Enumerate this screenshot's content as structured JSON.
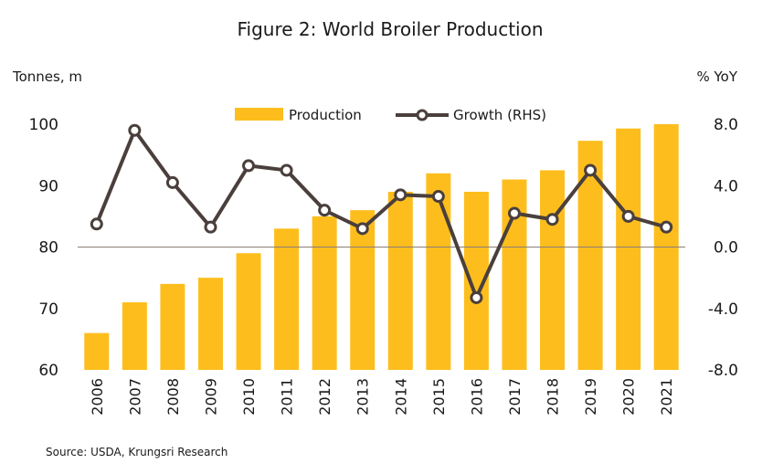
{
  "chart_data": {
    "type": "bar",
    "title": "Figure 2: World Broiler Production",
    "source": "Source: USDA, Krungsri Research",
    "y_left_label": "Tonnes, m",
    "y_right_label": "% YoY",
    "categories": [
      "2006",
      "2007",
      "2008",
      "2009",
      "2010",
      "2011",
      "2012",
      "2013",
      "2014",
      "2015",
      "2016",
      "2017",
      "2018",
      "2019",
      "2020",
      "2021"
    ],
    "y_left": {
      "min": 60,
      "max": 100,
      "ticks": [
        "60",
        "70",
        "80",
        "90",
        "100"
      ]
    },
    "y_right": {
      "min": -8,
      "max": 8,
      "ticks": [
        "-8.0",
        "-4.0",
        "0.0",
        "4.0",
        "8.0"
      ]
    },
    "legend": {
      "placement": "top-center"
    },
    "series": [
      {
        "name": "Production",
        "type": "bar",
        "axis": "left",
        "color": "#FDBE1D",
        "values": [
          66,
          71,
          74,
          75,
          79,
          83,
          85,
          86,
          89,
          92,
          89,
          91,
          92.5,
          97.3,
          99.3,
          100
        ]
      },
      {
        "name": "Growth (RHS)",
        "type": "line",
        "axis": "right",
        "color": "#4A3F3C",
        "values": [
          1.5,
          7.6,
          4.2,
          1.3,
          5.3,
          5.0,
          2.4,
          1.2,
          3.4,
          3.3,
          -3.3,
          2.2,
          1.8,
          5.0,
          2.0,
          1.3
        ]
      }
    ],
    "zero_line_color": "#8B7D78"
  }
}
